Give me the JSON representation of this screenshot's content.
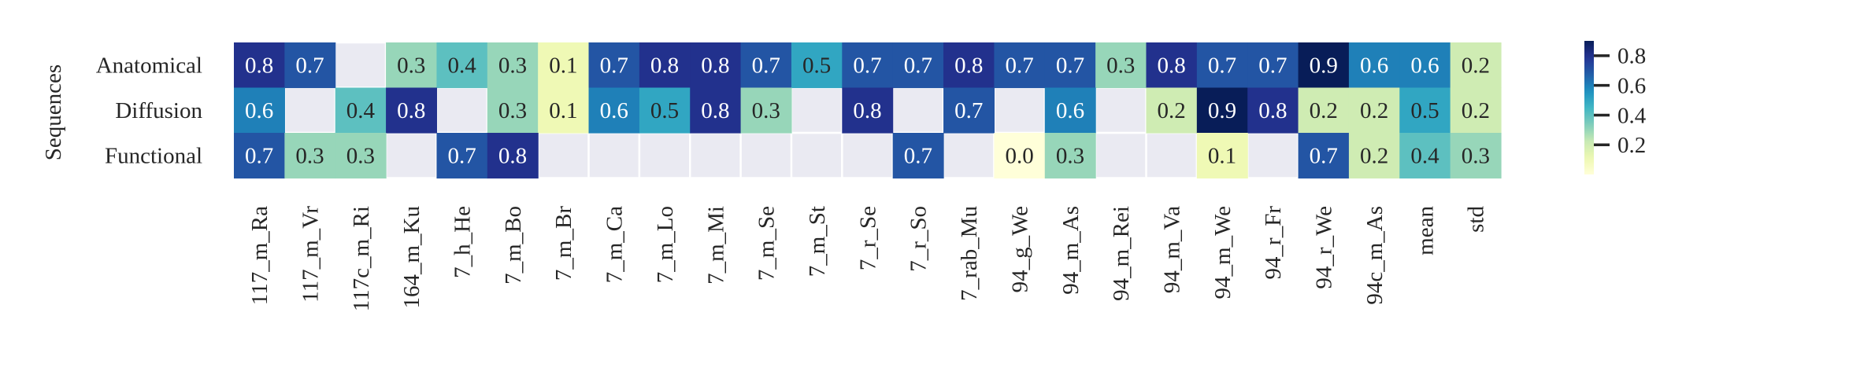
{
  "chart_data": {
    "type": "heatmap",
    "ylabel": "Sequences",
    "rows": [
      "Anatomical",
      "Diffusion",
      "Functional"
    ],
    "columns": [
      "117_m_Ra",
      "117_m_Vr",
      "117c_m_Ri",
      "164_m_Ku",
      "7_h_He",
      "7_m_Bo",
      "7_m_Br",
      "7_m_Ca",
      "7_m_Lo",
      "7_m_Mi",
      "7_m_Se",
      "7_m_St",
      "7_r_Se",
      "7_r_So",
      "7_rab_Mu",
      "94_g_We",
      "94_m_As",
      "94_m_Rei",
      "94_m_Va",
      "94_m_We",
      "94_r_Fr",
      "94_r_We",
      "94c_m_As",
      "mean",
      "std"
    ],
    "values": [
      [
        0.8,
        0.7,
        null,
        0.3,
        0.4,
        0.3,
        0.1,
        0.7,
        0.8,
        0.8,
        0.7,
        0.5,
        0.7,
        0.7,
        0.8,
        0.7,
        0.7,
        0.3,
        0.8,
        0.7,
        0.7,
        0.9,
        0.6,
        0.6,
        0.2
      ],
      [
        0.6,
        null,
        0.4,
        0.8,
        null,
        0.3,
        0.1,
        0.6,
        0.5,
        0.8,
        0.3,
        null,
        0.8,
        null,
        0.7,
        null,
        0.6,
        null,
        0.2,
        0.9,
        0.8,
        0.2,
        0.2,
        0.5,
        0.2
      ],
      [
        0.7,
        0.3,
        0.3,
        null,
        0.7,
        0.8,
        null,
        null,
        null,
        null,
        null,
        null,
        null,
        0.7,
        null,
        0.0,
        0.3,
        null,
        null,
        0.1,
        null,
        0.7,
        0.2,
        0.4,
        0.3
      ]
    ],
    "colormap": "YlGnBu",
    "vmin": 0.0,
    "vmax": 0.9,
    "colorbar_ticks": [
      0.2,
      0.4,
      0.6,
      0.8
    ],
    "missing_color": "#eaeaf2",
    "grid_color": "#ffffff",
    "annotation_format": "0.1f"
  }
}
